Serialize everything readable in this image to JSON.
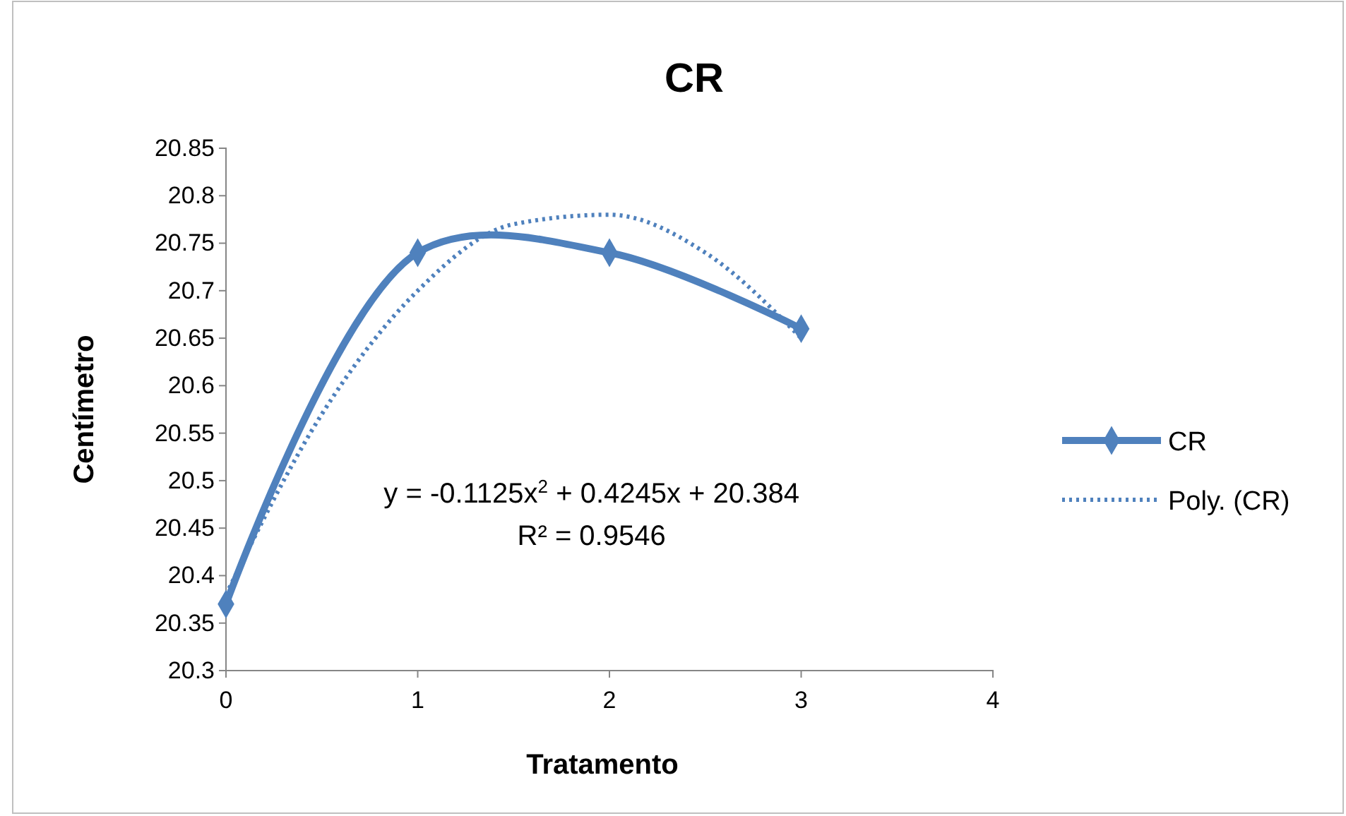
{
  "chart_data": {
    "type": "line",
    "title": "CR",
    "xlabel": "Tratamento",
    "ylabel": "Centímetro",
    "xlim": [
      0,
      4
    ],
    "xticks": [
      0,
      1,
      2,
      3,
      4
    ],
    "ylim": [
      20.3,
      20.85
    ],
    "yticks": [
      20.3,
      20.35,
      20.4,
      20.45,
      20.5,
      20.55,
      20.6,
      20.65,
      20.7,
      20.75,
      20.8,
      20.85
    ],
    "grid": false,
    "legend": "right",
    "series": [
      {
        "name": "CR",
        "color": "#4f81bd",
        "x": [
          0,
          1,
          2,
          3
        ],
        "values": [
          20.37,
          20.74,
          20.74,
          20.66
        ],
        "marker": "diamond",
        "line_style": "solid"
      },
      {
        "name": "Poly. (CR)",
        "color": "#4f81bd",
        "x": [
          0,
          0.5,
          1,
          1.5,
          2,
          2.5,
          3
        ],
        "values": [
          20.38,
          20.57,
          20.7,
          20.77,
          20.78,
          20.74,
          20.65
        ],
        "marker": "none",
        "line_style": "dotted"
      }
    ],
    "annotations": [
      "y = -0.1125x$^{2}$ + 0.4245x + 20.384",
      "R² = 0.9546"
    ]
  }
}
